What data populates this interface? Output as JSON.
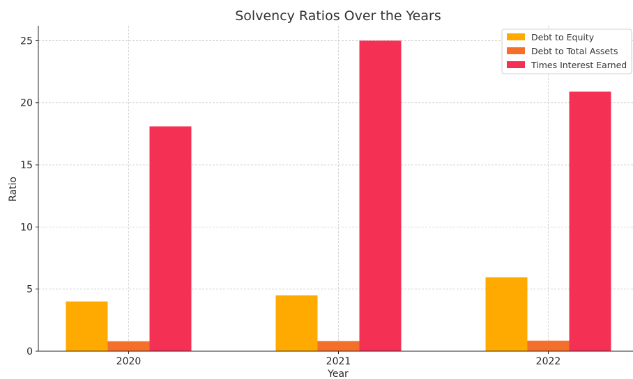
{
  "chart_data": {
    "type": "bar",
    "title": "Solvency Ratios Over the Years",
    "xlabel": "Year",
    "ylabel": "Ratio",
    "categories": [
      "2020",
      "2021",
      "2022"
    ],
    "series": [
      {
        "name": "Debt to Equity",
        "color": "#FFAA00",
        "values": [
          4.0,
          4.5,
          5.95
        ]
      },
      {
        "name": "Debt to Total Assets",
        "color": "#F46F2A",
        "values": [
          0.8,
          0.82,
          0.85
        ]
      },
      {
        "name": "Times Interest Earned",
        "color": "#F53055",
        "values": [
          18.1,
          25.0,
          20.9
        ]
      }
    ],
    "ylim": [
      0,
      26.2
    ],
    "yticks": [
      0,
      5,
      10,
      15,
      20,
      25
    ],
    "grid": true,
    "legend_position": "top-right"
  }
}
